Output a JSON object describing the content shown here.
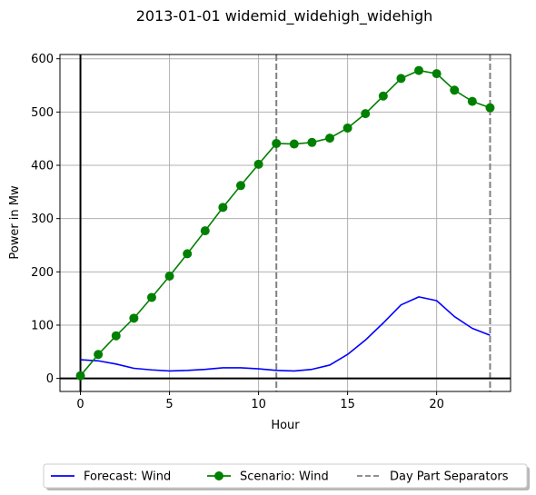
{
  "chart_data": {
    "type": "line",
    "title": "2013-01-01 widemid_widehigh_widehigh",
    "xlabel": "Hour",
    "ylabel": "Power in Mw",
    "xlim": [
      -1.15,
      24.15
    ],
    "ylim": [
      -24.5,
      608
    ],
    "xticks": [
      0,
      5,
      10,
      15,
      20
    ],
    "yticks": [
      0,
      100,
      200,
      300,
      400,
      500,
      600
    ],
    "grid": true,
    "legend_position": "bottom",
    "x": [
      0,
      1,
      2,
      3,
      4,
      5,
      6,
      7,
      8,
      9,
      10,
      11,
      12,
      13,
      14,
      15,
      16,
      17,
      18,
      19,
      20,
      21,
      22,
      23
    ],
    "series": [
      {
        "name": "Forecast: Wind",
        "color": "#0000ff",
        "style": "line",
        "values": [
          35,
          33,
          27,
          19,
          16,
          14,
          15,
          17,
          20,
          20,
          18,
          15,
          14,
          17,
          25,
          45,
          72,
          104,
          138,
          153,
          146,
          116,
          94,
          81
        ]
      },
      {
        "name": "Scenario: Wind",
        "color": "#008000",
        "style": "line-marker",
        "values": [
          5,
          45,
          80,
          113,
          152,
          192,
          234,
          277,
          321,
          362,
          402,
          441,
          440,
          443,
          451,
          470,
          497,
          530,
          563,
          578,
          572,
          541,
          520,
          508
        ]
      }
    ],
    "separators": {
      "name": "Day Part Separators",
      "color": "#808080",
      "x": [
        11,
        23
      ]
    }
  }
}
